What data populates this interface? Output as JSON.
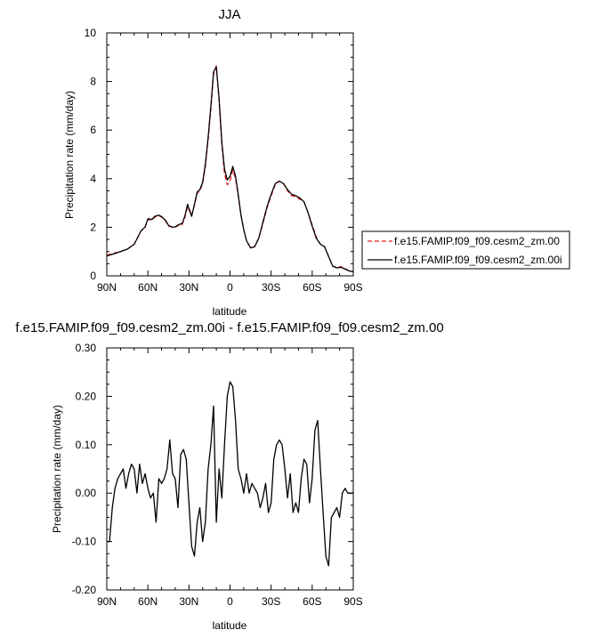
{
  "chart_data": [
    {
      "type": "line",
      "title": "JJA",
      "xlabel": "latitude",
      "ylabel": "Precipitation rate (mm/day)",
      "x_axis_direction": "north-to-south",
      "xlim": [
        90,
        -90
      ],
      "ylim": [
        0,
        10
      ],
      "xticks": [
        90,
        60,
        30,
        0,
        -30,
        -60,
        -90
      ],
      "xtick_labels": [
        "90N",
        "60N",
        "30N",
        "0",
        "30S",
        "60S",
        "90S"
      ],
      "yticks": [
        0,
        2,
        4,
        6,
        8,
        10
      ],
      "ytick_labels": [
        "0",
        "2",
        "4",
        "6",
        "8",
        "10"
      ],
      "grid": false,
      "legend_position": "right",
      "x": [
        90,
        85,
        80,
        75,
        70,
        65,
        62,
        60,
        57,
        55,
        52,
        50,
        47,
        45,
        42,
        40,
        37,
        35,
        33,
        31,
        30,
        28,
        26,
        24,
        22,
        20,
        18,
        16,
        14,
        12,
        10,
        8,
        6,
        4,
        2,
        0,
        -2,
        -4,
        -6,
        -8,
        -10,
        -12,
        -15,
        -18,
        -21,
        -24,
        -27,
        -30,
        -33,
        -36,
        -39,
        -42,
        -45,
        -48,
        -51,
        -54,
        -57,
        -60,
        -63,
        -66,
        -69,
        -72,
        -75,
        -78,
        -81,
        -84,
        -87,
        -90
      ],
      "series": [
        {
          "name": "f.e15.FAMIP.f09_f09.cesm2_zm.00",
          "color": "#e41a1c",
          "dash": "dashed",
          "values": [
            0.85,
            0.93,
            1.0,
            1.1,
            1.3,
            1.85,
            2.0,
            2.32,
            2.3,
            2.42,
            2.48,
            2.42,
            2.25,
            2.05,
            2.0,
            2.0,
            2.1,
            2.1,
            2.4,
            2.85,
            2.8,
            2.5,
            2.9,
            3.4,
            3.5,
            3.8,
            4.5,
            5.6,
            6.9,
            8.3,
            8.65,
            7.2,
            5.4,
            4.2,
            3.75,
            3.9,
            4.35,
            4.0,
            3.3,
            2.5,
            1.9,
            1.45,
            1.15,
            1.2,
            1.55,
            2.15,
            2.8,
            3.3,
            3.75,
            3.9,
            3.8,
            3.5,
            3.3,
            3.25,
            3.15,
            3.05,
            2.6,
            2.1,
            1.6,
            1.3,
            1.2,
            0.8,
            0.4,
            0.33,
            0.38,
            0.3,
            0.2,
            0.18
          ]
        },
        {
          "name": "f.e15.FAMIP.f09_f09.cesm2_zm.00i",
          "color": "#000000",
          "dash": "solid",
          "values": [
            0.82,
            0.9,
            1.0,
            1.1,
            1.3,
            1.85,
            2.02,
            2.35,
            2.32,
            2.45,
            2.5,
            2.44,
            2.28,
            2.08,
            2.0,
            2.02,
            2.12,
            2.15,
            2.45,
            2.95,
            2.75,
            2.45,
            2.95,
            3.45,
            3.55,
            3.85,
            4.6,
            5.7,
            7.0,
            8.4,
            8.6,
            7.3,
            5.5,
            4.4,
            3.95,
            4.1,
            4.5,
            4.1,
            3.35,
            2.5,
            1.9,
            1.45,
            1.15,
            1.2,
            1.55,
            2.2,
            2.85,
            3.35,
            3.8,
            3.9,
            3.8,
            3.55,
            3.35,
            3.3,
            3.2,
            3.05,
            2.6,
            2.05,
            1.55,
            1.3,
            1.2,
            0.8,
            0.4,
            0.33,
            0.35,
            0.28,
            0.2,
            0.17
          ]
        }
      ]
    },
    {
      "type": "line",
      "title": "f.e15.FAMIP.f09_f09.cesm2_zm.00i - f.e15.FAMIP.f09_f09.cesm2_zm.00",
      "xlabel": "latitude",
      "ylabel": "Precipitation rate (mm/day)",
      "x_axis_direction": "north-to-south",
      "xlim": [
        90,
        -90
      ],
      "ylim": [
        -0.2,
        0.3
      ],
      "xticks": [
        90,
        60,
        30,
        0,
        -30,
        -60,
        -90
      ],
      "xtick_labels": [
        "90N",
        "60N",
        "30N",
        "0",
        "30S",
        "60S",
        "90S"
      ],
      "yticks": [
        -0.2,
        -0.1,
        0.0,
        0.1,
        0.2,
        0.3
      ],
      "ytick_labels": [
        "-0.20",
        "-0.10",
        "0.00",
        "0.10",
        "0.20",
        "0.30"
      ],
      "grid": false,
      "x": [
        90,
        88,
        86,
        84,
        82,
        80,
        78,
        76,
        74,
        72,
        70,
        68,
        66,
        64,
        62,
        60,
        58,
        56,
        54,
        52,
        50,
        48,
        46,
        44,
        42,
        40,
        38,
        36,
        34,
        32,
        30,
        28,
        26,
        24,
        22,
        20,
        18,
        16,
        14,
        12,
        10,
        8,
        6,
        4,
        2,
        0,
        -2,
        -4,
        -6,
        -8,
        -10,
        -12,
        -14,
        -16,
        -18,
        -20,
        -22,
        -24,
        -26,
        -28,
        -30,
        -32,
        -34,
        -36,
        -38,
        -40,
        -42,
        -44,
        -46,
        -48,
        -50,
        -52,
        -54,
        -56,
        -58,
        -60,
        -62,
        -64,
        -66,
        -68,
        -70,
        -72,
        -74,
        -76,
        -78,
        -80,
        -82,
        -84,
        -86,
        -88,
        -90
      ],
      "series": [
        {
          "name": "",
          "color": "#000000",
          "dash": "solid",
          "values": [
            -0.1,
            -0.1,
            -0.03,
            0.01,
            0.03,
            0.04,
            0.05,
            0.01,
            0.04,
            0.06,
            0.05,
            0.0,
            0.06,
            0.02,
            0.04,
            0.01,
            -0.01,
            0.0,
            -0.06,
            0.03,
            0.02,
            0.03,
            0.05,
            0.11,
            0.04,
            0.03,
            -0.03,
            0.08,
            0.09,
            0.07,
            -0.02,
            -0.11,
            -0.13,
            -0.06,
            -0.03,
            -0.1,
            -0.06,
            0.05,
            0.1,
            0.18,
            -0.06,
            0.05,
            -0.01,
            0.1,
            0.2,
            0.23,
            0.22,
            0.15,
            0.05,
            0.03,
            0.0,
            0.04,
            0.0,
            0.02,
            0.01,
            0.0,
            -0.03,
            -0.01,
            0.02,
            -0.04,
            -0.02,
            0.07,
            0.1,
            0.11,
            0.1,
            0.05,
            -0.01,
            0.04,
            -0.04,
            -0.02,
            -0.04,
            0.03,
            0.07,
            0.06,
            -0.02,
            0.03,
            0.13,
            0.15,
            0.05,
            -0.04,
            -0.13,
            -0.15,
            -0.05,
            -0.04,
            -0.03,
            -0.05,
            0.0,
            0.01,
            0.0,
            0.0,
            0.0
          ]
        }
      ]
    }
  ]
}
